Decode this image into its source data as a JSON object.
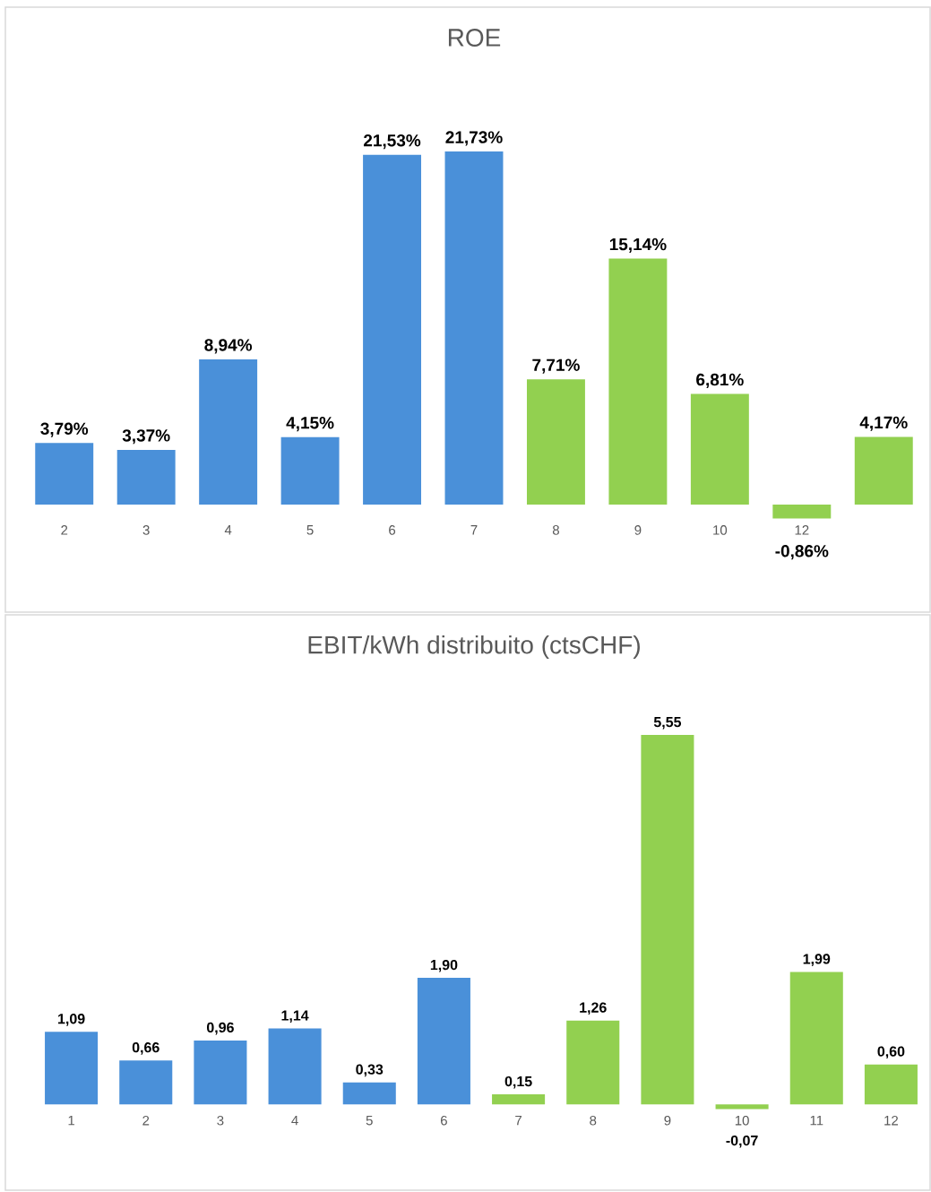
{
  "chart_data": [
    {
      "type": "bar",
      "title": "ROE",
      "categories": [
        "2",
        "3",
        "4",
        "5",
        "6",
        "7",
        "8",
        "9",
        "10",
        "12",
        null
      ],
      "values": [
        3.79,
        3.37,
        8.94,
        4.15,
        21.53,
        21.73,
        7.71,
        15.14,
        6.81,
        -0.86,
        4.17
      ],
      "value_labels": [
        "3,79%",
        "3,37%",
        "8,94%",
        "4,15%",
        "21,53%",
        "21,73%",
        "7,71%",
        "15,14%",
        "6,81%",
        "-0,86%",
        "4,17%"
      ],
      "colors": [
        "#4a90d9",
        "#4a90d9",
        "#4a90d9",
        "#4a90d9",
        "#4a90d9",
        "#4a90d9",
        "#92d050",
        "#92d050",
        "#92d050",
        "#92d050",
        "#92d050"
      ]
    },
    {
      "type": "bar",
      "title": "EBIT/kWh distribuito (ctsCHF)",
      "categories": [
        "1",
        "2",
        "3",
        "4",
        "5",
        "6",
        "7",
        "8",
        "9",
        "10",
        "11",
        "12"
      ],
      "values": [
        1.09,
        0.66,
        0.96,
        1.14,
        0.33,
        1.9,
        0.15,
        1.26,
        5.55,
        -0.07,
        1.99,
        0.6
      ],
      "value_labels": [
        "1,09",
        "0,66",
        "0,96",
        "1,14",
        "0,33",
        "1,90",
        "0,15",
        "1,26",
        "5,55",
        "-0,07",
        "1,99",
        "0,60"
      ],
      "colors": [
        "#4a90d9",
        "#4a90d9",
        "#4a90d9",
        "#4a90d9",
        "#4a90d9",
        "#4a90d9",
        "#92d050",
        "#92d050",
        "#92d050",
        "#92d050",
        "#92d050",
        "#92d050"
      ]
    }
  ]
}
